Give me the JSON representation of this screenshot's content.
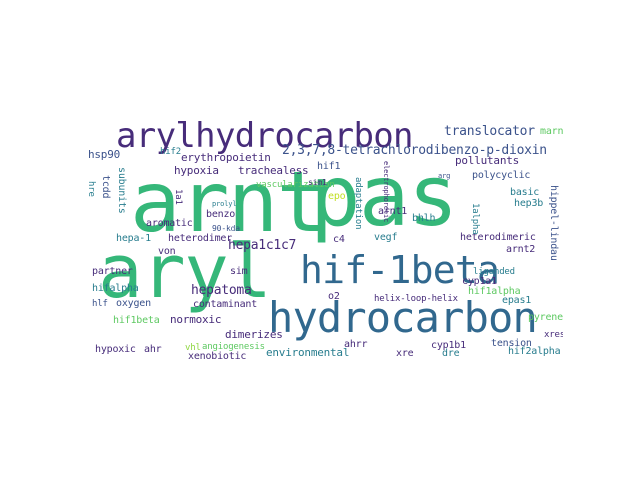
{
  "palette": {
    "background": "#ffffff",
    "dark_purple": "#472c7a",
    "purple": "#443a83",
    "indigo": "#3b528b",
    "blue": "#31688e",
    "teal": "#287d8e",
    "teal2": "#21918c",
    "green_teal": "#20a486",
    "green": "#35b779",
    "bright_green": "#5ec962",
    "lime": "#90d743",
    "yellow_green": "#c2df23",
    "yellow": "#fde725"
  },
  "words": [
    {
      "text": "arnt",
      "color": "green"
    },
    {
      "text": "pas",
      "color": "green"
    },
    {
      "text": "aryl",
      "color": "green"
    },
    {
      "text": "hif-1beta",
      "color": "blue"
    },
    {
      "text": "hydrocarbon",
      "color": "blue"
    },
    {
      "text": "arylhydrocarbon",
      "color": "dark_purple"
    },
    {
      "text": "translocator",
      "color": "indigo"
    },
    {
      "text": "marnt",
      "color": "bright_green"
    },
    {
      "text": "2,3,7,8-tetrachlorodibenzo-p-dioxin",
      "color": "indigo"
    },
    {
      "text": "hif2",
      "color": "teal"
    },
    {
      "text": "hsp90",
      "color": "indigo"
    },
    {
      "text": "erythropoietin",
      "color": "dark_purple"
    },
    {
      "text": "pollutants",
      "color": "dark_purple"
    },
    {
      "text": "hypoxia",
      "color": "dark_purple"
    },
    {
      "text": "trachealess",
      "color": "dark_purple"
    },
    {
      "text": "hif1",
      "color": "indigo"
    },
    {
      "text": "polycyclic",
      "color": "indigo"
    },
    {
      "text": "basic",
      "color": "teal"
    },
    {
      "text": "hep3b",
      "color": "teal"
    },
    {
      "text": "subunits",
      "color": "teal"
    },
    {
      "text": "tcdd",
      "color": "indigo"
    },
    {
      "text": "hre",
      "color": "teal"
    },
    {
      "text": "1a1",
      "color": "dark_purple"
    },
    {
      "text": "epo",
      "color": "yellow_green"
    },
    {
      "text": "adaptation",
      "color": "teal"
    },
    {
      "text": "arnt1",
      "color": "dark_purple"
    },
    {
      "text": "bhlh",
      "color": "teal"
    },
    {
      "text": "benzo",
      "color": "dark_purple"
    },
    {
      "text": "aromatic",
      "color": "dark_purple"
    },
    {
      "text": "hepa-1",
      "color": "teal"
    },
    {
      "text": "heterodimer",
      "color": "dark_purple"
    },
    {
      "text": "c4",
      "color": "dark_purple"
    },
    {
      "text": "heterodimeric",
      "color": "dark_purple"
    },
    {
      "text": "vegf",
      "color": "teal"
    },
    {
      "text": "arnt2",
      "color": "dark_purple"
    },
    {
      "text": "hippel-lindau",
      "color": "indigo"
    },
    {
      "text": "1alpha",
      "color": "teal"
    },
    {
      "text": "hepa1c1c7",
      "color": "dark_purple"
    },
    {
      "text": "von",
      "color": "dark_purple"
    },
    {
      "text": "partner",
      "color": "dark_purple"
    },
    {
      "text": "sim",
      "color": "dark_purple"
    },
    {
      "text": "hifalpha",
      "color": "teal"
    },
    {
      "text": "hif1alpha",
      "color": "bright_green"
    },
    {
      "text": "hlf",
      "color": "indigo"
    },
    {
      "text": "oxygen",
      "color": "indigo"
    },
    {
      "text": "o2",
      "color": "dark_purple"
    },
    {
      "text": "helix-loop-helix",
      "color": "dark_purple"
    },
    {
      "text": "epas1",
      "color": "teal"
    },
    {
      "text": "pyrene",
      "color": "bright_green"
    },
    {
      "text": "hepatoma",
      "color": "dark_purple"
    },
    {
      "text": "contaminant",
      "color": "dark_purple"
    },
    {
      "text": "liganded",
      "color": "teal"
    },
    {
      "text": "hif1beta",
      "color": "bright_green"
    },
    {
      "text": "normoxic",
      "color": "dark_purple"
    },
    {
      "text": "dimerizes",
      "color": "dark_purple"
    },
    {
      "text": "tension",
      "color": "indigo"
    },
    {
      "text": "cyp1a1",
      "color": "dark_purple"
    },
    {
      "text": "cyp1b1",
      "color": "dark_purple"
    },
    {
      "text": "hypoxic",
      "color": "dark_purple"
    },
    {
      "text": "ahr",
      "color": "dark_purple"
    },
    {
      "text": "vhl",
      "color": "lime"
    },
    {
      "text": "angiogenesis",
      "color": "bright_green"
    },
    {
      "text": "environmental",
      "color": "teal"
    },
    {
      "text": "ahrr",
      "color": "dark_purple"
    },
    {
      "text": "xre",
      "color": "dark_purple"
    },
    {
      "text": "dre",
      "color": "teal"
    },
    {
      "text": "hif2alpha",
      "color": "teal"
    },
    {
      "text": "xenobiotic",
      "color": "dark_purple"
    },
    {
      "text": "xres",
      "color": "dark_purple"
    },
    {
      "text": "vascularization",
      "color": "bright_green"
    },
    {
      "text": "sim1",
      "color": "dark_purple"
    },
    {
      "text": "90-kda",
      "color": "indigo"
    },
    {
      "text": "electrophoretic",
      "color": "dark_purple"
    },
    {
      "text": "arg",
      "color": "indigo"
    },
    {
      "text": "prolyl",
      "color": "teal"
    }
  ]
}
